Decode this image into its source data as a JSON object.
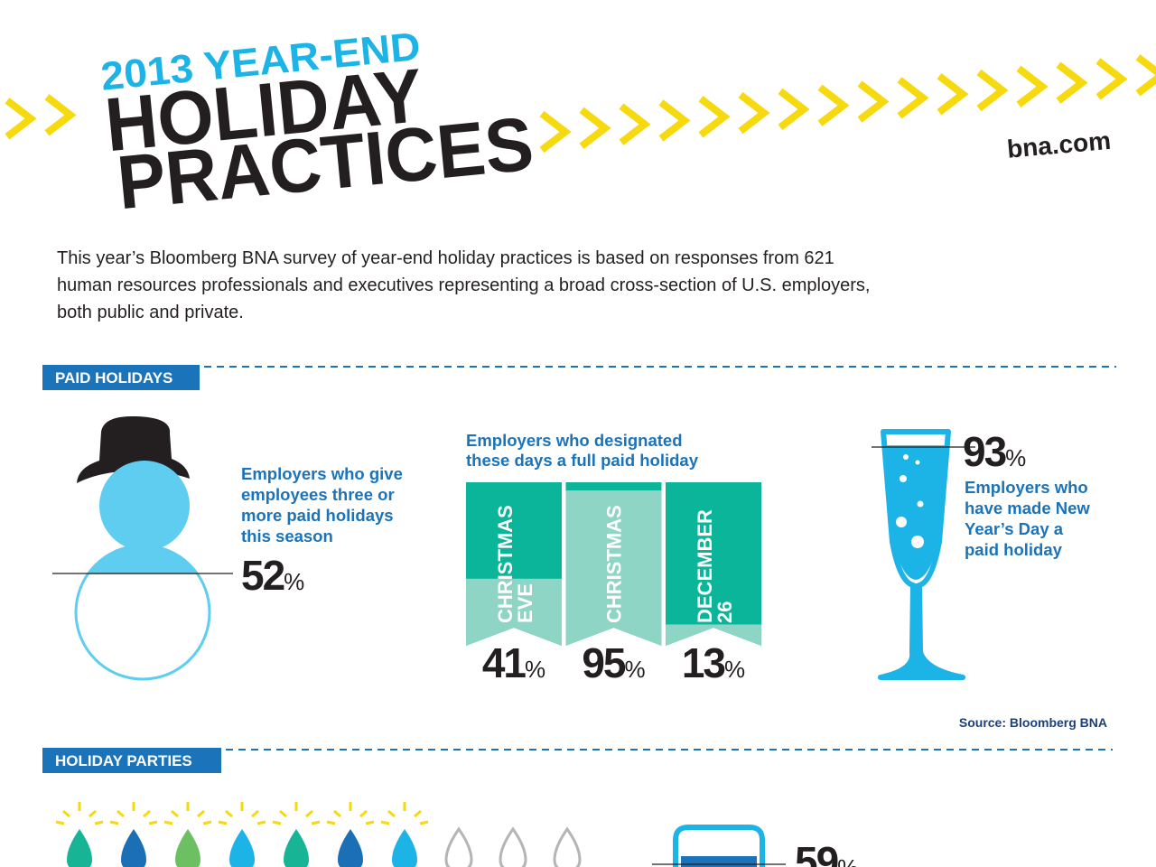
{
  "header": {
    "kicker": "2013 YEAR-END",
    "title_line1": "HOLIDAY",
    "title_line2": "PRACTICES",
    "site": "bna.com"
  },
  "intro_lines": [
    "This year’s Bloomberg BNA survey of year-end holiday practices is based on responses from 621",
    "human resources professionals and executives representing a broad cross-section of U.S. employers,",
    "both public and private."
  ],
  "paid_holidays": {
    "title": "PAID HOLIDAYS",
    "three_or_more": {
      "text_lines": [
        "Employers who give",
        "employees three or",
        "more paid holidays",
        "this season"
      ],
      "value": 52,
      "unit": "%"
    },
    "designated_days": {
      "title_lines": [
        "Employers who designated",
        "these days a full paid holiday"
      ],
      "items": [
        {
          "label_lines": [
            "CHRISTMAS",
            "EVE"
          ],
          "value": 41,
          "unit": "%"
        },
        {
          "label_lines": [
            "CHRISTMAS"
          ],
          "value": 95,
          "unit": "%"
        },
        {
          "label_lines": [
            "DECEMBER",
            "26"
          ],
          "value": 13,
          "unit": "%"
        }
      ]
    },
    "new_years_day": {
      "value": 93,
      "unit": "%",
      "text_lines": [
        "Employers who",
        "have made New",
        "Year’s Day a",
        "paid holiday"
      ]
    },
    "source": "Source: Bloomberg BNA"
  },
  "holiday_parties": {
    "title": "HOLIDAY PARTIES",
    "mug": {
      "value": 59,
      "unit": "%"
    }
  }
}
